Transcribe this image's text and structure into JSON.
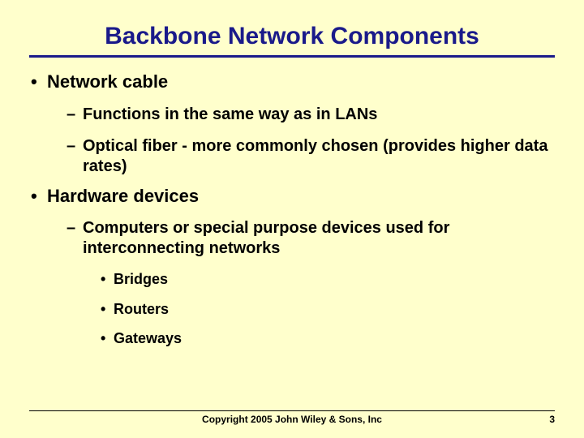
{
  "colors": {
    "background": "#ffffcc",
    "title": "#1a1a8a",
    "body_text": "#000000",
    "rule": "#1a1a8a",
    "footer_rule": "#000000"
  },
  "typography": {
    "title_fontsize": 30,
    "l1_fontsize": 22,
    "l2_fontsize": 20,
    "l3_fontsize": 18,
    "footer_fontsize": 12,
    "font_family": "Arial",
    "weight": "bold"
  },
  "title": "Backbone Network Components",
  "bullets": {
    "a": "Network cable",
    "a1": "Functions in the same way as in LANs",
    "a2": "Optical fiber - more commonly chosen (provides higher data rates)",
    "b": "Hardware devices",
    "b1": "Computers or special purpose devices used for interconnecting networks",
    "b1a": "Bridges",
    "b1b": "Routers",
    "b1c": "Gateways"
  },
  "footer": {
    "copyright": "Copyright 2005 John Wiley & Sons, Inc",
    "page": "3"
  }
}
